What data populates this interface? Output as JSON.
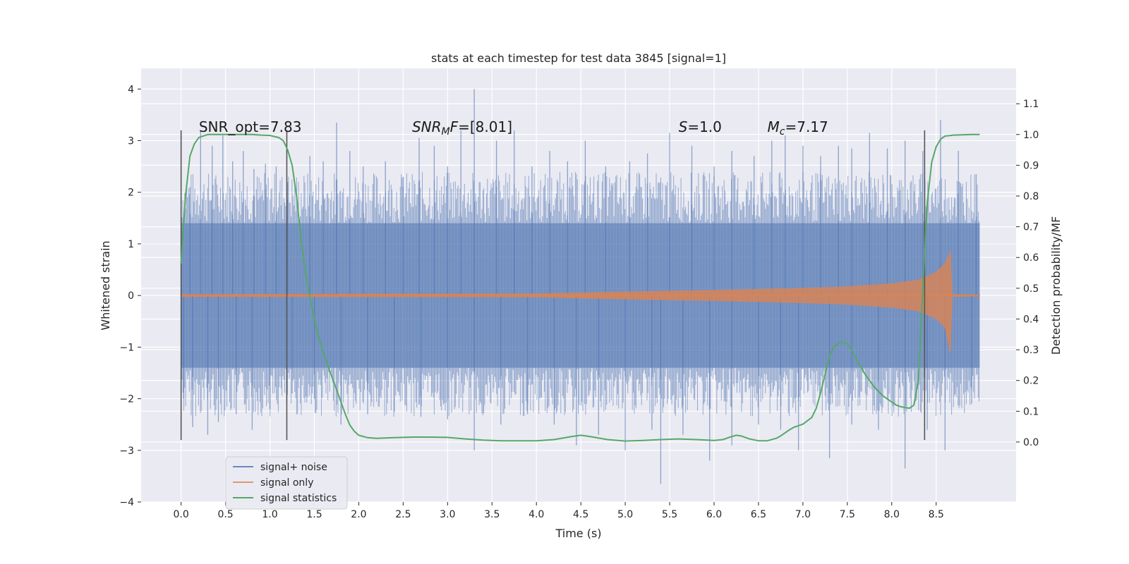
{
  "chart_data": {
    "type": "line",
    "title": "stats at each timestep for test data 3845 [signal=1]",
    "xlabel": "Time (s)",
    "ylabel": "Whitened strain",
    "ylabel_right": "Detection probability/MF",
    "xlim": [
      -0.45,
      9.4
    ],
    "ylim": [
      -4.0,
      4.4
    ],
    "ylim_right": [
      -0.195,
      1.215
    ],
    "x_ticks": [
      0.0,
      0.5,
      1.0,
      1.5,
      2.0,
      2.5,
      3.0,
      3.5,
      4.0,
      4.5,
      5.0,
      5.5,
      6.0,
      6.5,
      7.0,
      7.5,
      8.0,
      8.5
    ],
    "x_tick_labels": [
      "0.0",
      "0.5",
      "1.0",
      "1.5",
      "2.0",
      "2.5",
      "3.0",
      "3.5",
      "4.0",
      "4.5",
      "5.0",
      "5.5",
      "6.0",
      "6.5",
      "7.0",
      "7.5",
      "8.0",
      "8.5"
    ],
    "y_ticks": [
      4,
      3,
      2,
      1,
      0,
      -1,
      -2,
      -3,
      -4
    ],
    "y_tick_labels": [
      "4",
      "3",
      "2",
      "1",
      "0",
      "−1",
      "−2",
      "−3",
      "−4"
    ],
    "y_right_ticks": [
      1.1,
      1.0,
      0.9,
      0.8,
      0.7,
      0.6,
      0.5,
      0.4,
      0.3,
      0.2,
      0.1,
      0.0
    ],
    "y_right_tick_labels": [
      "1.1",
      "1.0",
      "0.9",
      "0.8",
      "0.7",
      "0.6",
      "0.5",
      "0.4",
      "0.3",
      "0.2",
      "0.1",
      "0.0"
    ],
    "grid": true,
    "background": "#eaeaf2",
    "legend_position": "lower-left",
    "series": [
      {
        "name": "signal+ noise",
        "color": "#4c72b0",
        "axis": "left",
        "style": "dense noise band",
        "x_range": [
          0.0,
          8.99
        ],
        "typical_envelope": [
          -1.4,
          1.4
        ],
        "spikes": [
          [
            0.0,
            1.85
          ],
          [
            0.1,
            2.1
          ],
          [
            0.22,
            3.2
          ],
          [
            0.35,
            2.9
          ],
          [
            0.47,
            3.1
          ],
          [
            0.58,
            2.6
          ],
          [
            0.7,
            2.8
          ],
          [
            0.82,
            2.45
          ],
          [
            0.95,
            2.55
          ],
          [
            1.07,
            2.5
          ],
          [
            1.2,
            2.2
          ],
          [
            1.45,
            2.7
          ],
          [
            1.6,
            2.6
          ],
          [
            1.75,
            3.35
          ],
          [
            1.9,
            2.8
          ],
          [
            2.05,
            2.5
          ],
          [
            2.3,
            2.6
          ],
          [
            2.5,
            2.3
          ],
          [
            2.68,
            3.05
          ],
          [
            2.85,
            2.9
          ],
          [
            3.0,
            2.5
          ],
          [
            3.15,
            3.2
          ],
          [
            3.3,
            4.0
          ],
          [
            3.55,
            3.0
          ],
          [
            3.75,
            3.2
          ],
          [
            3.95,
            2.5
          ],
          [
            4.15,
            2.8
          ],
          [
            4.35,
            2.6
          ],
          [
            4.55,
            3.0
          ],
          [
            4.78,
            2.5
          ],
          [
            5.05,
            2.6
          ],
          [
            5.25,
            2.75
          ],
          [
            5.5,
            3.15
          ],
          [
            5.75,
            2.9
          ],
          [
            6.0,
            2.5
          ],
          [
            6.2,
            2.8
          ],
          [
            6.45,
            2.7
          ],
          [
            6.65,
            3.0
          ],
          [
            6.8,
            3.1
          ],
          [
            7.0,
            2.9
          ],
          [
            7.2,
            2.7
          ],
          [
            7.4,
            2.9
          ],
          [
            7.55,
            2.85
          ],
          [
            7.75,
            3.15
          ],
          [
            7.95,
            2.85
          ],
          [
            8.15,
            3.0
          ],
          [
            8.35,
            2.8
          ],
          [
            8.55,
            3.4
          ],
          [
            8.75,
            2.8
          ],
          [
            8.95,
            2.35
          ],
          [
            0.03,
            -2.0
          ],
          [
            0.13,
            -2.55
          ],
          [
            0.3,
            -2.7
          ],
          [
            0.42,
            -2.45
          ],
          [
            0.62,
            -2.3
          ],
          [
            0.8,
            -2.6
          ],
          [
            1.0,
            -2.2
          ],
          [
            1.25,
            -1.9
          ],
          [
            1.5,
            -2.0
          ],
          [
            1.8,
            -2.5
          ],
          [
            2.1,
            -2.3
          ],
          [
            2.4,
            -2.25
          ],
          [
            2.7,
            -2.35
          ],
          [
            3.0,
            -2.4
          ],
          [
            3.3,
            -3.0
          ],
          [
            3.6,
            -2.5
          ],
          [
            3.9,
            -2.3
          ],
          [
            4.2,
            -2.5
          ],
          [
            4.45,
            -2.9
          ],
          [
            4.7,
            -2.7
          ],
          [
            5.0,
            -3.0
          ],
          [
            5.3,
            -2.6
          ],
          [
            5.4,
            -3.65
          ],
          [
            5.65,
            -2.7
          ],
          [
            5.95,
            -3.2
          ],
          [
            6.2,
            -2.9
          ],
          [
            6.5,
            -2.5
          ],
          [
            6.75,
            -2.6
          ],
          [
            6.95,
            -3.0
          ],
          [
            7.3,
            -3.15
          ],
          [
            7.55,
            -2.5
          ],
          [
            7.85,
            -2.6
          ],
          [
            8.15,
            -3.35
          ],
          [
            8.4,
            -2.6
          ],
          [
            8.6,
            -3.0
          ],
          [
            8.9,
            -2.1
          ]
        ]
      },
      {
        "name": "signal only",
        "color": "#dd8452",
        "axis": "left",
        "style": "chirp",
        "x_range": [
          0.0,
          8.99
        ],
        "amplitude": [
          [
            0.0,
            0.02
          ],
          [
            4.0,
            0.03
          ],
          [
            5.0,
            0.07
          ],
          [
            6.0,
            0.1
          ],
          [
            7.0,
            0.14
          ],
          [
            7.5,
            0.17
          ],
          [
            8.0,
            0.23
          ],
          [
            8.3,
            0.3
          ],
          [
            8.5,
            0.45
          ],
          [
            8.6,
            0.62
          ],
          [
            8.66,
            0.85
          ],
          [
            8.68,
            0.02
          ],
          [
            8.99,
            0.01
          ]
        ]
      },
      {
        "name": "signal statistics",
        "color": "#55a868",
        "axis": "right",
        "x": [
          0.0,
          0.05,
          0.1,
          0.15,
          0.2,
          0.3,
          0.4,
          0.5,
          0.6,
          0.7,
          0.8,
          0.9,
          1.0,
          1.1,
          1.15,
          1.2,
          1.25,
          1.3,
          1.35,
          1.4,
          1.45,
          1.5,
          1.55,
          1.6,
          1.65,
          1.7,
          1.75,
          1.8,
          1.85,
          1.9,
          1.95,
          2.0,
          2.1,
          2.2,
          2.4,
          2.6,
          2.8,
          3.0,
          3.2,
          3.4,
          3.6,
          3.8,
          4.0,
          4.2,
          4.4,
          4.5,
          4.6,
          4.8,
          5.0,
          5.2,
          5.4,
          5.6,
          5.8,
          6.0,
          6.1,
          6.2,
          6.25,
          6.3,
          6.4,
          6.5,
          6.6,
          6.7,
          6.75,
          6.8,
          6.85,
          6.9,
          6.95,
          7.0,
          7.1,
          7.15,
          7.2,
          7.25,
          7.3,
          7.35,
          7.4,
          7.45,
          7.5,
          7.55,
          7.6,
          7.7,
          7.8,
          7.9,
          8.0,
          8.05,
          8.1,
          8.15,
          8.2,
          8.25,
          8.3,
          8.35,
          8.4,
          8.45,
          8.5,
          8.55,
          8.6,
          8.7,
          8.8,
          8.9,
          8.99
        ],
        "y": [
          0.58,
          0.8,
          0.93,
          0.97,
          0.99,
          1.0,
          1.0,
          1.0,
          1.0,
          1.0,
          1.0,
          0.998,
          0.997,
          0.99,
          0.98,
          0.95,
          0.9,
          0.8,
          0.66,
          0.55,
          0.47,
          0.4,
          0.34,
          0.29,
          0.25,
          0.21,
          0.17,
          0.13,
          0.09,
          0.055,
          0.035,
          0.022,
          0.014,
          0.012,
          0.014,
          0.016,
          0.016,
          0.015,
          0.01,
          0.006,
          0.004,
          0.004,
          0.004,
          0.008,
          0.018,
          0.022,
          0.018,
          0.008,
          0.003,
          0.005,
          0.008,
          0.01,
          0.008,
          0.005,
          0.008,
          0.018,
          0.022,
          0.02,
          0.01,
          0.004,
          0.004,
          0.012,
          0.02,
          0.03,
          0.04,
          0.048,
          0.053,
          0.058,
          0.08,
          0.11,
          0.16,
          0.22,
          0.28,
          0.31,
          0.32,
          0.325,
          0.32,
          0.3,
          0.27,
          0.22,
          0.18,
          0.15,
          0.13,
          0.12,
          0.115,
          0.112,
          0.11,
          0.12,
          0.2,
          0.5,
          0.78,
          0.91,
          0.96,
          0.985,
          0.995,
          0.998,
          0.999,
          1.0,
          1.0
        ]
      }
    ],
    "vertical_lines": [
      {
        "x": 0.0,
        "y": [
          -2.8,
          3.2
        ]
      },
      {
        "x": 1.19,
        "y": [
          -2.8,
          3.2
        ]
      },
      {
        "x": 8.37,
        "y": [
          -2.8,
          3.2
        ]
      }
    ],
    "annotations": [
      {
        "x": 0.2,
        "y": 3.25,
        "parts": [
          {
            "t": "SNR_opt=7.83"
          }
        ]
      },
      {
        "x": 2.6,
        "y": 3.25,
        "parts": [
          {
            "t": "SNR",
            "i": true
          },
          {
            "t": "M",
            "i": true,
            "sub": true
          },
          {
            "t": "F",
            "i": true
          },
          {
            "t": "=[8.01]"
          }
        ]
      },
      {
        "x": 5.6,
        "y": 3.25,
        "parts": [
          {
            "t": "S",
            "i": true
          },
          {
            "t": "=1.0"
          }
        ]
      },
      {
        "x": 6.6,
        "y": 3.25,
        "parts": [
          {
            "t": "M",
            "i": true
          },
          {
            "t": "c",
            "i": true,
            "sub": true
          },
          {
            "t": "=7.17"
          }
        ]
      }
    ]
  }
}
